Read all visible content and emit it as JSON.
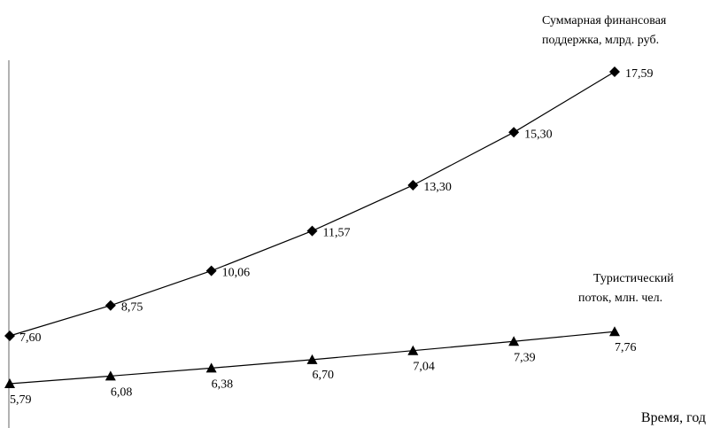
{
  "chart_data": {
    "type": "line",
    "xlabel": "Время, год",
    "ylabel": "",
    "x": [
      1,
      2,
      3,
      4,
      5,
      6,
      7
    ],
    "grid": false,
    "series": [
      {
        "name": "Суммарная финансовая поддержка, млрд. руб.",
        "name_lines": [
          "Суммарная  финансовая",
          "поддержка, млрд. руб."
        ],
        "marker": "diamond",
        "values": [
          7.6,
          8.75,
          10.06,
          11.57,
          13.3,
          15.3,
          17.59
        ],
        "labels": [
          "7,60",
          "8,75",
          "10,06",
          "11,57",
          "13,30",
          "15,30",
          "17,59"
        ]
      },
      {
        "name": "Туристический поток, млн. чел.",
        "name_lines": [
          "Туристический",
          "поток, млн. чел."
        ],
        "marker": "triangle",
        "values": [
          5.79,
          6.08,
          6.38,
          6.7,
          7.04,
          7.39,
          7.76
        ],
        "labels": [
          "5,79",
          "6,08",
          "6,38",
          "6,70",
          "7,04",
          "7,39",
          "7,76"
        ]
      }
    ],
    "colors": {
      "line": "#000000",
      "marker": "#000000",
      "axis": "#808080"
    }
  }
}
